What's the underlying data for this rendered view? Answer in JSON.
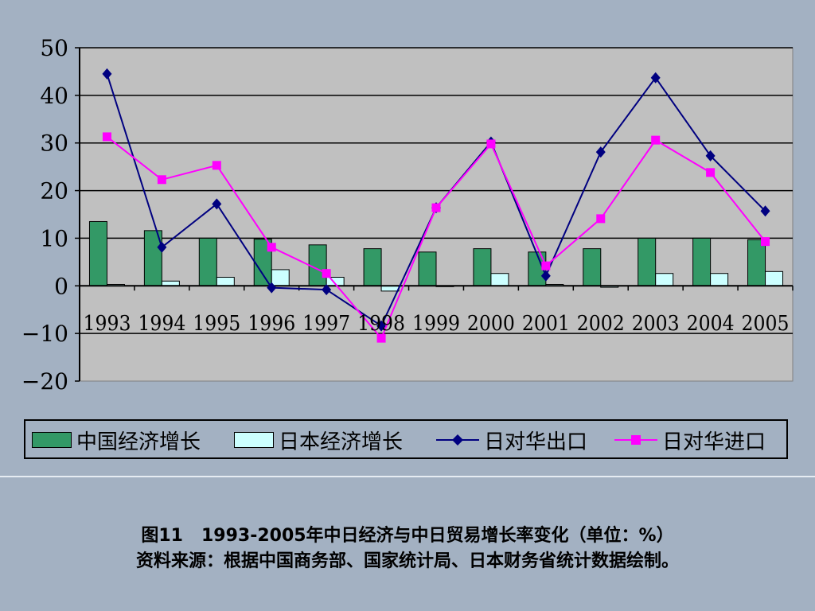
{
  "chart_data": {
    "type": "bar+line",
    "title": "",
    "xlabel": "",
    "ylabel": "",
    "categories": [
      "1993",
      "1994",
      "1995",
      "1996",
      "1997",
      "1998",
      "1999",
      "2000",
      "2001",
      "2002",
      "2003",
      "2004",
      "2005"
    ],
    "ylim": [
      -20,
      50
    ],
    "yticks": [
      50,
      40,
      30,
      20,
      10,
      0,
      -10,
      -20
    ],
    "grid": true,
    "legend_position": "bottom",
    "series": [
      {
        "name": "中国经济增长",
        "kind": "bar",
        "color": "#339966",
        "values": [
          13.5,
          11.6,
          10.0,
          9.8,
          8.6,
          7.8,
          7.1,
          7.8,
          7.1,
          7.8,
          10.0,
          10.0,
          9.7
        ]
      },
      {
        "name": "日本经济增长",
        "kind": "bar",
        "color": "#ccffff",
        "values": [
          0.3,
          1.0,
          1.8,
          3.4,
          1.8,
          -1.1,
          -0.1,
          2.6,
          0.3,
          -0.3,
          2.6,
          2.6,
          3.0
        ]
      },
      {
        "name": "日对华出口",
        "kind": "line",
        "color": "#000080",
        "marker": "diamond",
        "values": [
          44.5,
          8.1,
          17.2,
          -0.4,
          -0.8,
          -8.4,
          16.4,
          30.2,
          2.1,
          28.1,
          43.7,
          27.3,
          15.7
        ]
      },
      {
        "name": "日对华进口",
        "kind": "line",
        "color": "#ff00ff",
        "marker": "square",
        "values": [
          31.3,
          22.3,
          25.3,
          8.1,
          2.6,
          -11.0,
          16.4,
          29.8,
          4.2,
          14.1,
          30.6,
          23.8,
          9.3
        ]
      }
    ]
  },
  "caption": {
    "line1": "图11   1993-2005年中日经济与中日贸易增长率变化（单位：%）",
    "line2": "资料来源：根据中国商务部、国家统计局、日本财务省统计数据绘制。"
  },
  "colors": {
    "background": "#a3b1c2",
    "plot_area": "#c0c0c0"
  }
}
